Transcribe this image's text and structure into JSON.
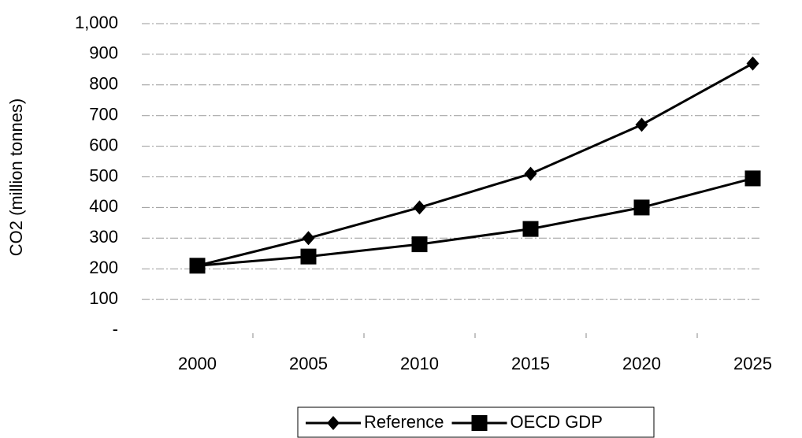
{
  "chart_data": {
    "type": "line",
    "y_label": "CO2 (million tonnes)",
    "categories": [
      "2000",
      "2005",
      "2010",
      "2015",
      "2020",
      "2025"
    ],
    "series": [
      {
        "name": "Reference",
        "color": "#000000",
        "marker": "diamond",
        "values": [
          210,
          300,
          400,
          510,
          670,
          870
        ]
      },
      {
        "name": "OECD GDP",
        "color": "#000000",
        "marker": "square",
        "values": [
          210,
          240,
          280,
          330,
          400,
          495
        ]
      }
    ],
    "ylim": [
      0,
      1000
    ],
    "yticks": [
      {
        "value": 0,
        "label": "-"
      },
      100,
      200,
      300,
      400,
      500,
      600,
      700,
      800,
      900,
      {
        "value": 1000,
        "label": "1,000"
      }
    ],
    "grid": true,
    "legend": "bottom"
  }
}
